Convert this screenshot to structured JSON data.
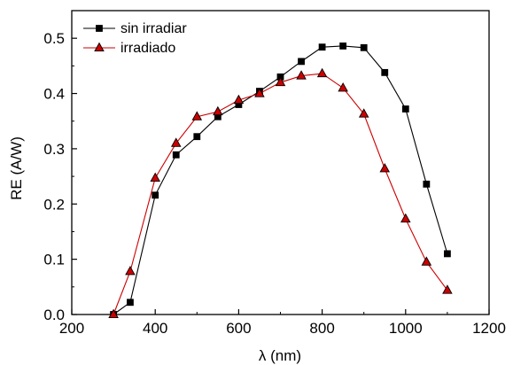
{
  "chart_data": {
    "type": "line",
    "title": "",
    "xlabel": "λ (nm)",
    "ylabel": "RE (A/W)",
    "xlim": [
      200,
      1200
    ],
    "ylim": [
      0.0,
      0.55
    ],
    "xticks": [
      200,
      400,
      600,
      800,
      1000,
      1200
    ],
    "yticks": [
      0.0,
      0.1,
      0.2,
      0.3,
      0.4,
      0.5
    ],
    "xtick_labels": [
      "200",
      "400",
      "600",
      "800",
      "1000",
      "1200"
    ],
    "ytick_labels": [
      "0.0",
      "0.1",
      "0.2",
      "0.3",
      "0.4",
      "0.5"
    ],
    "grid": false,
    "legend_position": "top-left",
    "series": [
      {
        "name": "sin irradiar",
        "marker": "square",
        "line_color": "#000000",
        "marker_fill": "#000000",
        "x": [
          300,
          340,
          400,
          450,
          500,
          550,
          600,
          650,
          700,
          750,
          800,
          850,
          900,
          950,
          1000,
          1050,
          1100
        ],
        "y": [
          0.0,
          0.022,
          0.216,
          0.289,
          0.322,
          0.358,
          0.38,
          0.404,
          0.43,
          0.458,
          0.484,
          0.486,
          0.483,
          0.438,
          0.372,
          0.236,
          0.11
        ]
      },
      {
        "name": "irradiado",
        "marker": "triangle",
        "line_color": "#cc0000",
        "marker_fill": "#cc0000",
        "x": [
          300,
          340,
          400,
          450,
          500,
          550,
          600,
          650,
          700,
          750,
          800,
          850,
          900,
          950,
          1000,
          1050,
          1100
        ],
        "y": [
          0.0,
          0.078,
          0.247,
          0.31,
          0.358,
          0.367,
          0.388,
          0.4,
          0.42,
          0.432,
          0.436,
          0.41,
          0.363,
          0.264,
          0.173,
          0.095,
          0.044
        ]
      }
    ]
  }
}
